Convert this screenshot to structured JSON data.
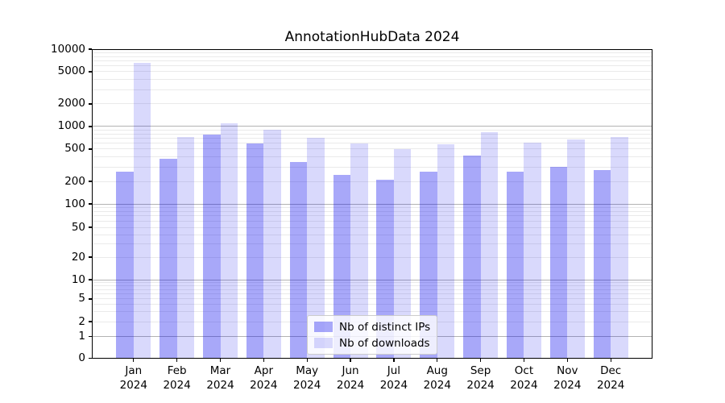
{
  "title": "AnnotationHubData 2024",
  "chart_data": {
    "type": "bar",
    "title": "AnnotationHubData 2024",
    "categories": [
      "Jan",
      "Feb",
      "Mar",
      "Apr",
      "May",
      "Jun",
      "Jul",
      "Aug",
      "Sep",
      "Oct",
      "Nov",
      "Dec"
    ],
    "category_year": "2024",
    "series": [
      {
        "name": "Nb of distinct IPs",
        "color": "rgba(0,0,238,0.34)",
        "values": [
          265,
          383,
          788,
          600,
          349,
          239,
          209,
          262,
          419,
          261,
          302,
          277
        ]
      },
      {
        "name": "Nb of downloads",
        "color": "rgba(0,0,238,0.15)",
        "values": [
          6615,
          725,
          1096,
          913,
          707,
          595,
          503,
          576,
          841,
          614,
          678,
          725
        ]
      }
    ],
    "xlabel": "",
    "ylabel": "",
    "y_axis": {
      "scale": "symlog-like",
      "ylim": [
        0,
        10000
      ],
      "ticks": [
        {
          "value": 0,
          "label": "0",
          "f": 0.0
        },
        {
          "value": 1,
          "label": "1",
          "f": 0.0704
        },
        {
          "value": 2,
          "label": "2",
          "f": 0.1186
        },
        {
          "value": 5,
          "label": "5",
          "f": 0.1917
        },
        {
          "value": 10,
          "label": "10",
          "f": 0.2542
        },
        {
          "value": 20,
          "label": "20",
          "f": 0.3272
        },
        {
          "value": 50,
          "label": "50",
          "f": 0.4237
        },
        {
          "value": 100,
          "label": "100",
          "f": 0.4993
        },
        {
          "value": 200,
          "label": "200",
          "f": 0.5723
        },
        {
          "value": 500,
          "label": "500",
          "f": 0.6767
        },
        {
          "value": 1000,
          "label": "1000",
          "f": 0.7497
        },
        {
          "value": 2000,
          "label": "2000",
          "f": 0.8227
        },
        {
          "value": 5000,
          "label": "5000",
          "f": 0.927
        },
        {
          "value": 10000,
          "label": "10000",
          "f": 1.0
        }
      ],
      "major_grid_values": [
        1,
        10,
        100,
        1000
      ],
      "minor_grid_bases": [
        1,
        10,
        100,
        1000
      ],
      "grid": "on"
    },
    "legend": {
      "position": "lower center",
      "entries": [
        "Nb of distinct IPs",
        "Nb of downloads"
      ]
    },
    "colors": {
      "bar_dark": "rgba(0,0,238,0.34)",
      "bar_light": "rgba(0,0,238,0.15)",
      "major_grid": "#b3b3b3",
      "minor_grid": "#eaeaea",
      "spine": "#000000"
    }
  }
}
